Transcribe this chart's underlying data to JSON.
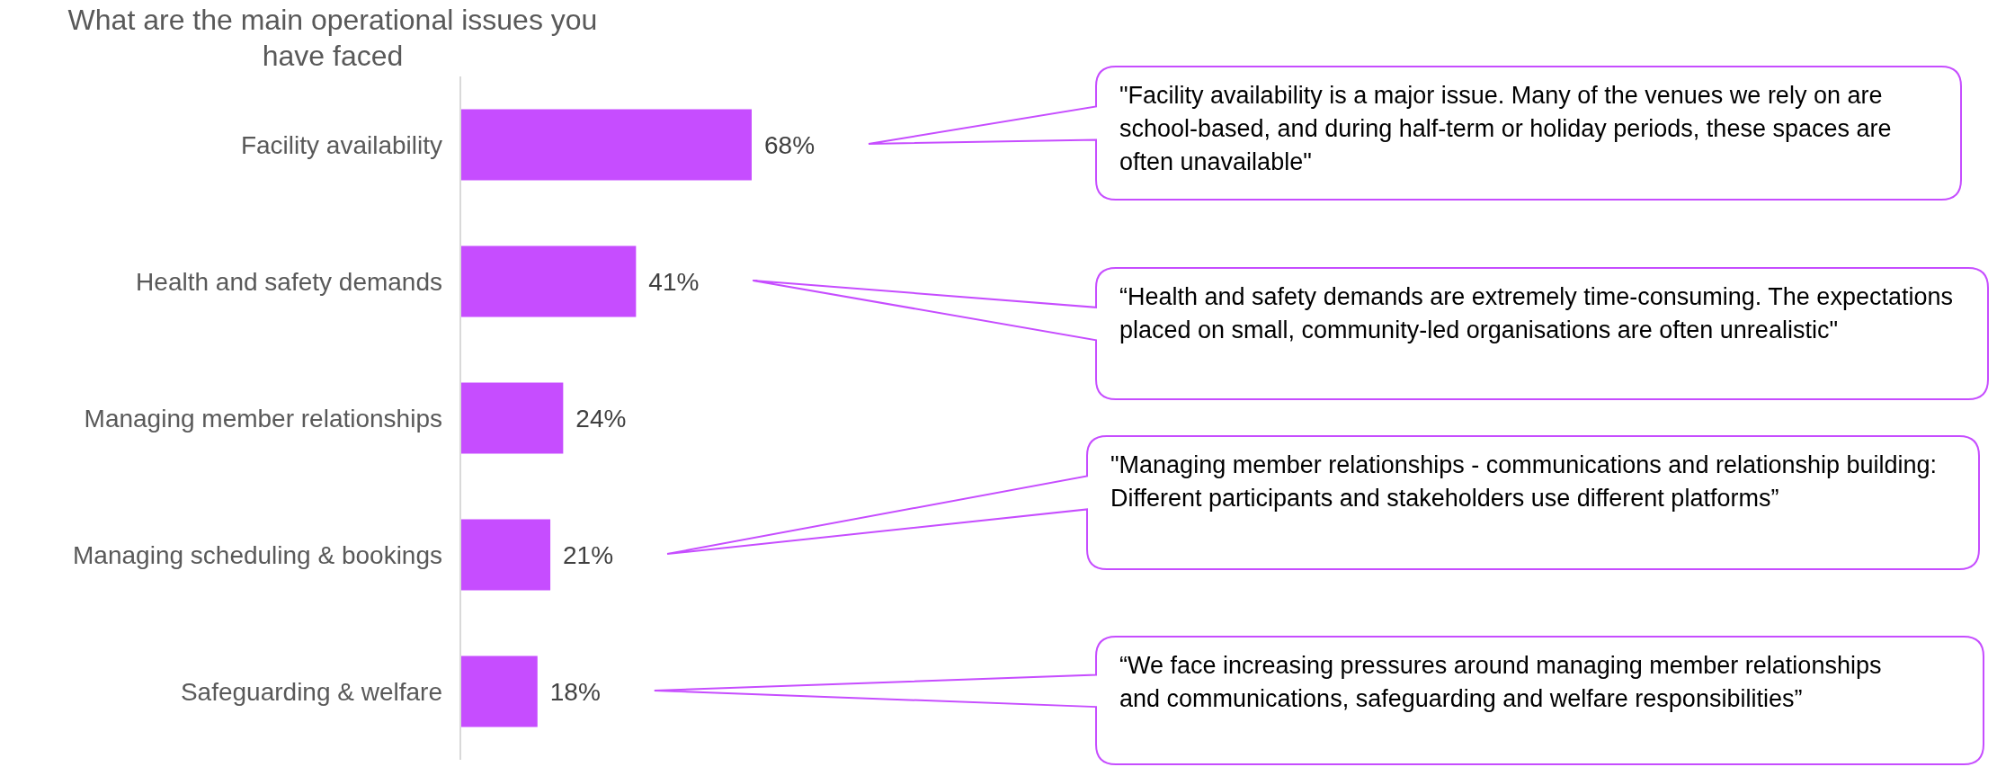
{
  "chart_data": {
    "type": "bar",
    "orientation": "horizontal",
    "title": "What are the main operational issues you have faced",
    "categories": [
      "Facility availability",
      "Health and safety demands",
      "Managing member relationships",
      "Managing scheduling & bookings",
      "Safeguarding & welfare"
    ],
    "values": [
      68,
      41,
      24,
      21,
      18
    ],
    "value_labels": [
      "68%",
      "41%",
      "24%",
      "21%",
      "18%"
    ],
    "color": "#c64dff",
    "annotations": [
      "\"Facility availability is a major issue. Many of the venues we rely on are school-based, and during half-term or holiday periods, these spaces are often unavailable\"",
      "“Health and safety demands are extremely time-consuming. The expectations placed on small, community-led organisations are often unrealistic\"",
      "\"Managing member relationships - communications and relationship building: Different participants and stakeholders use different platforms”",
      "“We face increasing pressures around managing member relationships and communications, safeguarding and welfare responsibilities”"
    ]
  }
}
